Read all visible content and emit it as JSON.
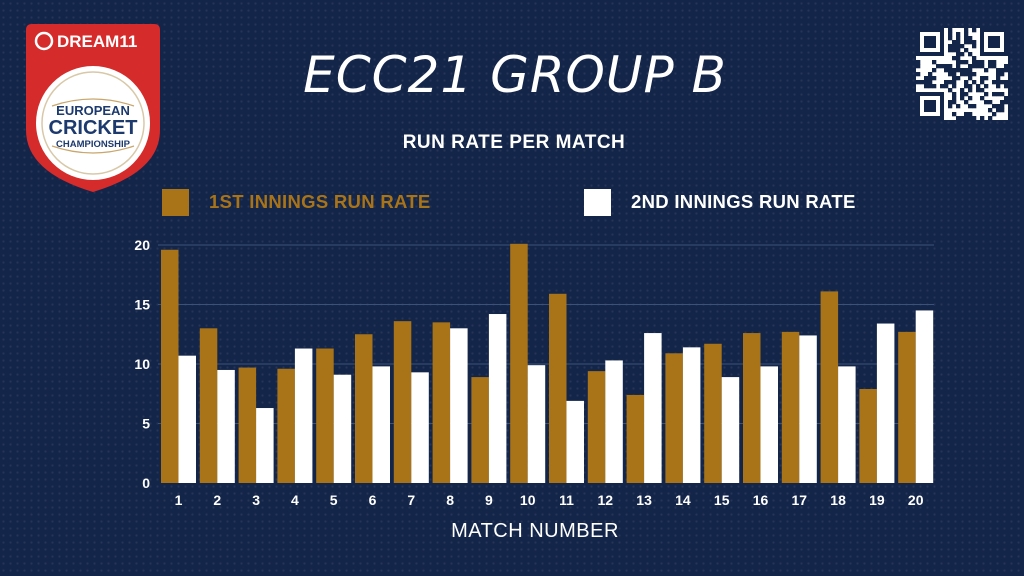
{
  "header": {
    "title": "ECC21 GROUP B",
    "subtitle": "RUN RATE PER MATCH"
  },
  "logo": {
    "brand": "DREAM11",
    "line1": "EUROPEAN",
    "line2": "CRICKET",
    "line3": "CHAMPIONSHIP",
    "icon": "dream11-badge-icon",
    "colors": {
      "badge": "#d62b2b",
      "inner": "#ffffff",
      "ink": "#1c3a6e"
    }
  },
  "qr_code": {
    "icon": "qr-code-icon"
  },
  "colors": {
    "background": "#14254a",
    "first_innings": "#a97418",
    "second_innings": "#ffffff",
    "grid": "#3b5178"
  },
  "chart_data": {
    "type": "bar",
    "title": "RUN RATE PER MATCH",
    "xlabel": "MATCH NUMBER",
    "ylabel": "",
    "ylim": [
      0,
      20
    ],
    "yticks": [
      0,
      5,
      10,
      15,
      20
    ],
    "grid": true,
    "legend_position": "top",
    "categories": [
      "1",
      "2",
      "3",
      "4",
      "5",
      "6",
      "7",
      "8",
      "9",
      "10",
      "11",
      "12",
      "13",
      "14",
      "15",
      "16",
      "17",
      "18",
      "19",
      "20"
    ],
    "series": [
      {
        "name": "1ST INNINGS RUN RATE",
        "color": "#a97418",
        "values": [
          19.6,
          13.0,
          9.7,
          9.6,
          11.3,
          12.5,
          13.6,
          13.5,
          8.9,
          20.1,
          15.9,
          9.4,
          7.4,
          10.9,
          11.7,
          12.6,
          12.7,
          16.1,
          7.9,
          12.7
        ]
      },
      {
        "name": "2ND INNINGS RUN RATE",
        "color": "#ffffff",
        "values": [
          10.7,
          9.5,
          6.3,
          11.3,
          9.1,
          9.8,
          9.3,
          13.0,
          14.2,
          9.9,
          6.9,
          10.3,
          12.6,
          11.4,
          8.9,
          9.8,
          12.4,
          9.8,
          13.4,
          14.5
        ]
      }
    ]
  }
}
